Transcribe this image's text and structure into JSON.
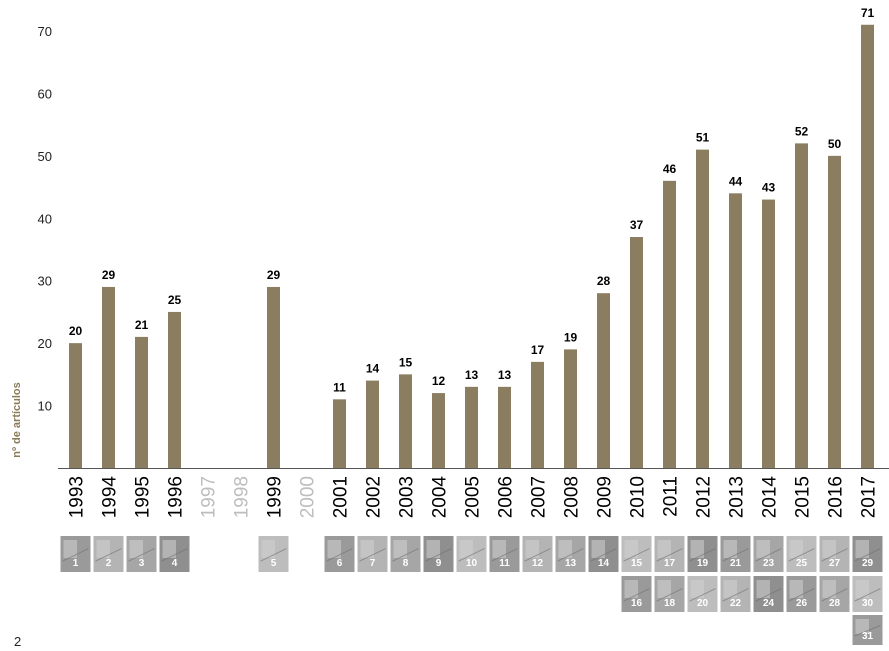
{
  "chart_data": {
    "type": "bar",
    "ylabel": "nº de artículos",
    "xlabel": "",
    "title": "",
    "ylim": [
      0,
      70
    ],
    "yticks": [
      10,
      20,
      30,
      40,
      50,
      60,
      70
    ],
    "grid": false,
    "bar_color": "#8b7d5f",
    "empty_label_color": "#bdbdbd",
    "categories": [
      "1993",
      "1994",
      "1995",
      "1996",
      "1997",
      "1998",
      "1999",
      "2000",
      "2001",
      "2002",
      "2003",
      "2004",
      "2005",
      "2006",
      "2007",
      "2008",
      "2009",
      "2010",
      "2011",
      "2012",
      "2013",
      "2014",
      "2015",
      "2016",
      "2017"
    ],
    "values": [
      20,
      29,
      21,
      25,
      0,
      0,
      29,
      0,
      11,
      14,
      15,
      12,
      13,
      13,
      17,
      19,
      28,
      37,
      46,
      51,
      44,
      43,
      52,
      50,
      71
    ],
    "data_labels": [
      "20",
      "29",
      "21",
      "25",
      "",
      "",
      "29",
      "",
      "11",
      "14",
      "15",
      "12",
      "13",
      "13",
      "17",
      "19",
      "28",
      "37",
      "46",
      "51",
      "44",
      "43",
      "52",
      "50",
      "71"
    ]
  },
  "thumbnails": [
    {
      "year_index": 0,
      "row": 0,
      "label": "1"
    },
    {
      "year_index": 1,
      "row": 0,
      "label": "2"
    },
    {
      "year_index": 2,
      "row": 0,
      "label": "3"
    },
    {
      "year_index": 3,
      "row": 0,
      "label": "4"
    },
    {
      "year_index": 6,
      "row": 0,
      "label": "5"
    },
    {
      "year_index": 8,
      "row": 0,
      "label": "6"
    },
    {
      "year_index": 9,
      "row": 0,
      "label": "7"
    },
    {
      "year_index": 10,
      "row": 0,
      "label": "8"
    },
    {
      "year_index": 11,
      "row": 0,
      "label": "9"
    },
    {
      "year_index": 12,
      "row": 0,
      "label": "10"
    },
    {
      "year_index": 13,
      "row": 0,
      "label": "11"
    },
    {
      "year_index": 14,
      "row": 0,
      "label": "12"
    },
    {
      "year_index": 15,
      "row": 0,
      "label": "13"
    },
    {
      "year_index": 16,
      "row": 0,
      "label": "14"
    },
    {
      "year_index": 17,
      "row": 0,
      "label": "15"
    },
    {
      "year_index": 17,
      "row": 1,
      "label": "16"
    },
    {
      "year_index": 18,
      "row": 0,
      "label": "17"
    },
    {
      "year_index": 18,
      "row": 1,
      "label": "18"
    },
    {
      "year_index": 19,
      "row": 0,
      "label": "19"
    },
    {
      "year_index": 19,
      "row": 1,
      "label": "20"
    },
    {
      "year_index": 20,
      "row": 0,
      "label": "21"
    },
    {
      "year_index": 20,
      "row": 1,
      "label": "22"
    },
    {
      "year_index": 21,
      "row": 0,
      "label": "23"
    },
    {
      "year_index": 21,
      "row": 1,
      "label": "24"
    },
    {
      "year_index": 22,
      "row": 0,
      "label": "25"
    },
    {
      "year_index": 22,
      "row": 1,
      "label": "26"
    },
    {
      "year_index": 23,
      "row": 0,
      "label": "27"
    },
    {
      "year_index": 23,
      "row": 1,
      "label": "28"
    },
    {
      "year_index": 24,
      "row": 0,
      "label": "29"
    },
    {
      "year_index": 24,
      "row": 1,
      "label": "30"
    },
    {
      "year_index": 24,
      "row": 2,
      "label": "31"
    }
  ],
  "page_number": "2"
}
